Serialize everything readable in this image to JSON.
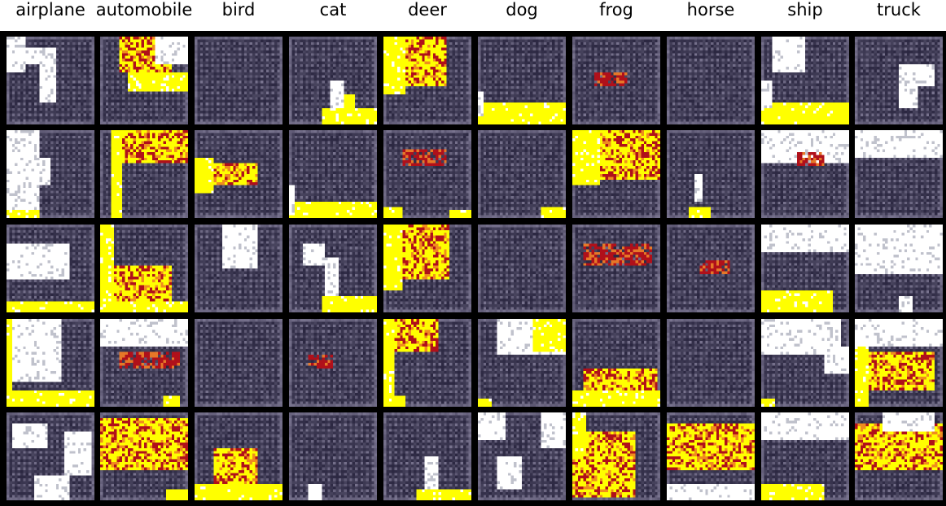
{
  "classes": [
    "airplane",
    "automobile",
    "bird",
    "cat",
    "deer",
    "dog",
    "frog",
    "horse",
    "ship",
    "truck"
  ],
  "grid": {
    "rows": 5,
    "columns": 10,
    "background": "#000000",
    "palette": {
      "dark": "#3a3650",
      "mid": "#6a6580",
      "light": "#c0c2cc",
      "white": "#ffffff",
      "yellow": "#ffff00",
      "red": "#b0101a"
    }
  },
  "samples": [
    [
      {
        "class": "airplane",
        "content": "white blob shape with vertical stem"
      },
      {
        "class": "automobile",
        "content": "yellow and red speckled object top, yellow band middle"
      },
      {
        "class": "bird",
        "content": "uniform dark grid"
      },
      {
        "class": "cat",
        "content": "white vertical post with yellow base bottom right"
      },
      {
        "class": "deer",
        "content": "large yellow and red speckled blob upper left"
      },
      {
        "class": "dog",
        "content": "yellow ground band at bottom"
      },
      {
        "class": "frog",
        "content": "small orange-red streak at center"
      },
      {
        "class": "horse",
        "content": "uniform dark grid"
      },
      {
        "class": "ship",
        "content": "white blobs with yellow ground bottom"
      },
      {
        "class": "truck",
        "content": "pale vertical bars on right side"
      }
    ],
    [
      {
        "class": "airplane",
        "content": "white left edge with yellow corner"
      },
      {
        "class": "automobile",
        "content": "yellow red speckled top with yellow left"
      },
      {
        "class": "bird",
        "content": "orange-red band with yellow left"
      },
      {
        "class": "cat",
        "content": "yellow ground band at bottom"
      },
      {
        "class": "deer",
        "content": "faint orange streak with yellow corner"
      },
      {
        "class": "dog",
        "content": "small yellow blob bottom right"
      },
      {
        "class": "frog",
        "content": "large yellow and red speckled blob top"
      },
      {
        "class": "horse",
        "content": "small yellow blob at bottom"
      },
      {
        "class": "ship",
        "content": "white sky top with orange streak"
      },
      {
        "class": "truck",
        "content": "pale grey band top"
      }
    ],
    [
      {
        "class": "airplane",
        "content": "white shapes with yellow ground"
      },
      {
        "class": "automobile",
        "content": "yellow red object bottom left"
      },
      {
        "class": "bird",
        "content": "faint pale streaks"
      },
      {
        "class": "cat",
        "content": "white mushroom shape with yellow base"
      },
      {
        "class": "deer",
        "content": "large yellow red blob upper left"
      },
      {
        "class": "dog",
        "content": "muted grey texture"
      },
      {
        "class": "frog",
        "content": "dark red streaks"
      },
      {
        "class": "horse",
        "content": "orange streak center"
      },
      {
        "class": "ship",
        "content": "pale grey top with yellow ground"
      },
      {
        "class": "truck",
        "content": "white sky with dark band"
      }
    ],
    [
      {
        "class": "airplane",
        "content": "white blobs with yellow ground"
      },
      {
        "class": "automobile",
        "content": "white frame with orange streak"
      },
      {
        "class": "bird",
        "content": "uniform dark grid"
      },
      {
        "class": "cat",
        "content": "faint grey texture"
      },
      {
        "class": "deer",
        "content": "yellow red blob with yellow left edge"
      },
      {
        "class": "dog",
        "content": "yellow and white blob top right"
      },
      {
        "class": "frog",
        "content": "yellow red mound bottom"
      },
      {
        "class": "horse",
        "content": "uniform dark grid"
      },
      {
        "class": "ship",
        "content": "white shapes with yellow corner"
      },
      {
        "class": "truck",
        "content": "white top with yellow red blob"
      }
    ],
    [
      {
        "class": "airplane",
        "content": "white blobs on grey"
      },
      {
        "class": "automobile",
        "content": "yellow red band with yellow edges"
      },
      {
        "class": "bird",
        "content": "yellow red shape bottom"
      },
      {
        "class": "cat",
        "content": "dark grid with white dot bottom"
      },
      {
        "class": "deer",
        "content": "white vertical post with yellow base"
      },
      {
        "class": "dog",
        "content": "white shapes on grey"
      },
      {
        "class": "frog",
        "content": "large yellow red blob"
      },
      {
        "class": "horse",
        "content": "yellow band with white top"
      },
      {
        "class": "ship",
        "content": "white sky with yellow ground"
      },
      {
        "class": "truck",
        "content": "yellow band with white top"
      }
    ]
  ]
}
